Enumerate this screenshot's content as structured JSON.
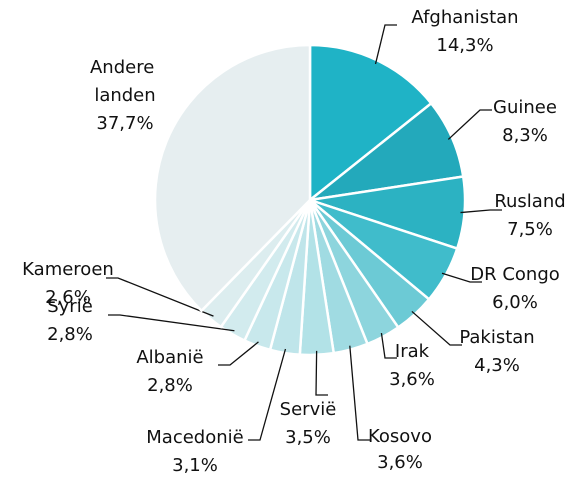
{
  "chart_data": {
    "type": "pie",
    "categories": [
      "Afghanistan",
      "Guinee",
      "Rusland",
      "DR Congo",
      "Pakistan",
      "Irak",
      "Kosovo",
      "Servië",
      "Macedonië",
      "Albanië",
      "Syrië",
      "Kameroen",
      "Andere landen"
    ],
    "values": [
      14.3,
      8.3,
      7.5,
      6.0,
      4.3,
      3.6,
      3.6,
      3.5,
      3.1,
      2.8,
      2.8,
      2.6,
      37.7
    ],
    "value_labels": [
      "14,3%",
      "8,3%",
      "7,5%",
      "6,0%",
      "4,3%",
      "3,6%",
      "3,6%",
      "3,5%",
      "3,1%",
      "2,8%",
      "2,8%",
      "2,6%",
      "37,7%"
    ],
    "colors": [
      "#1fb3c6",
      "#23a9bb",
      "#2cb2c2",
      "#40bccb",
      "#6ccad5",
      "#8dd5dd",
      "#a0dbe2",
      "#b2e2e7",
      "#bfe5ea",
      "#c8e8ec",
      "#d2ebee",
      "#dcedef",
      "#e6eef0"
    ]
  }
}
